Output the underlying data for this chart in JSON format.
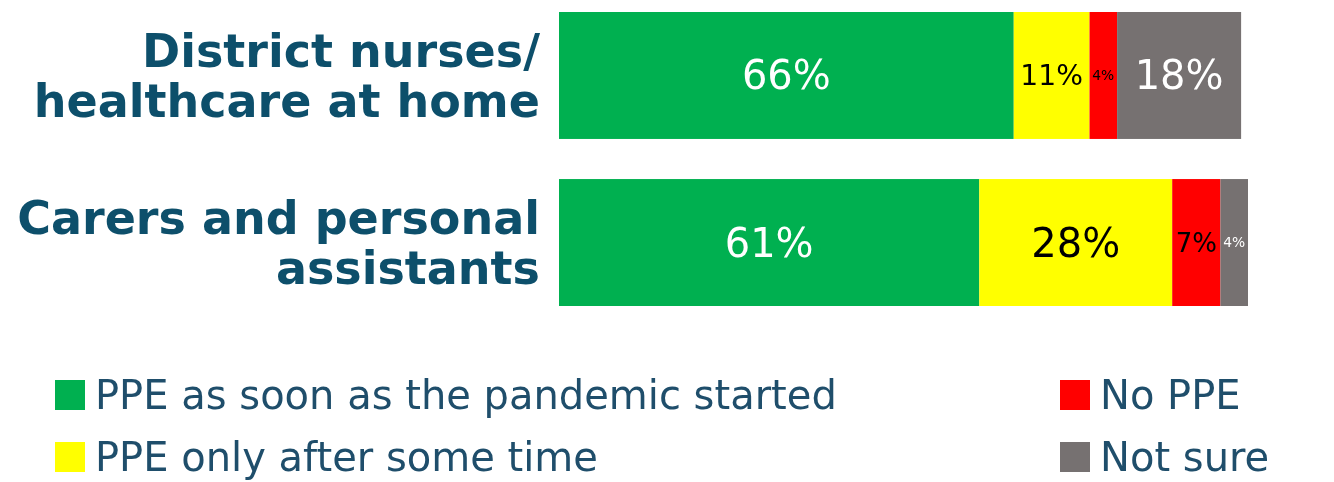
{
  "chart_data": {
    "type": "bar",
    "orientation": "horizontal",
    "stacked": true,
    "categories": [
      "District nurses/ healthcare at home",
      "Carers and personal assistants"
    ],
    "xlim": [
      0,
      100
    ],
    "tick_labels": "y",
    "legend": "bottom",
    "series": [
      {
        "name": "PPE as soon as the pandemic started",
        "color": "#00b050",
        "values": [
          66,
          61
        ],
        "value_labels": [
          "66%",
          "61%"
        ]
      },
      {
        "name": "PPE only after some time",
        "color": "#ffff00",
        "values": [
          11,
          28
        ],
        "value_labels": [
          "11%",
          "28%"
        ]
      },
      {
        "name": "No PPE",
        "color": "#ff0000",
        "values": [
          4,
          7
        ],
        "value_labels": [
          "4%",
          "7%"
        ]
      },
      {
        "name": "Not sure",
        "color": "#767171",
        "values": [
          18,
          4
        ],
        "value_labels": [
          "18%",
          "4%"
        ]
      }
    ]
  }
}
